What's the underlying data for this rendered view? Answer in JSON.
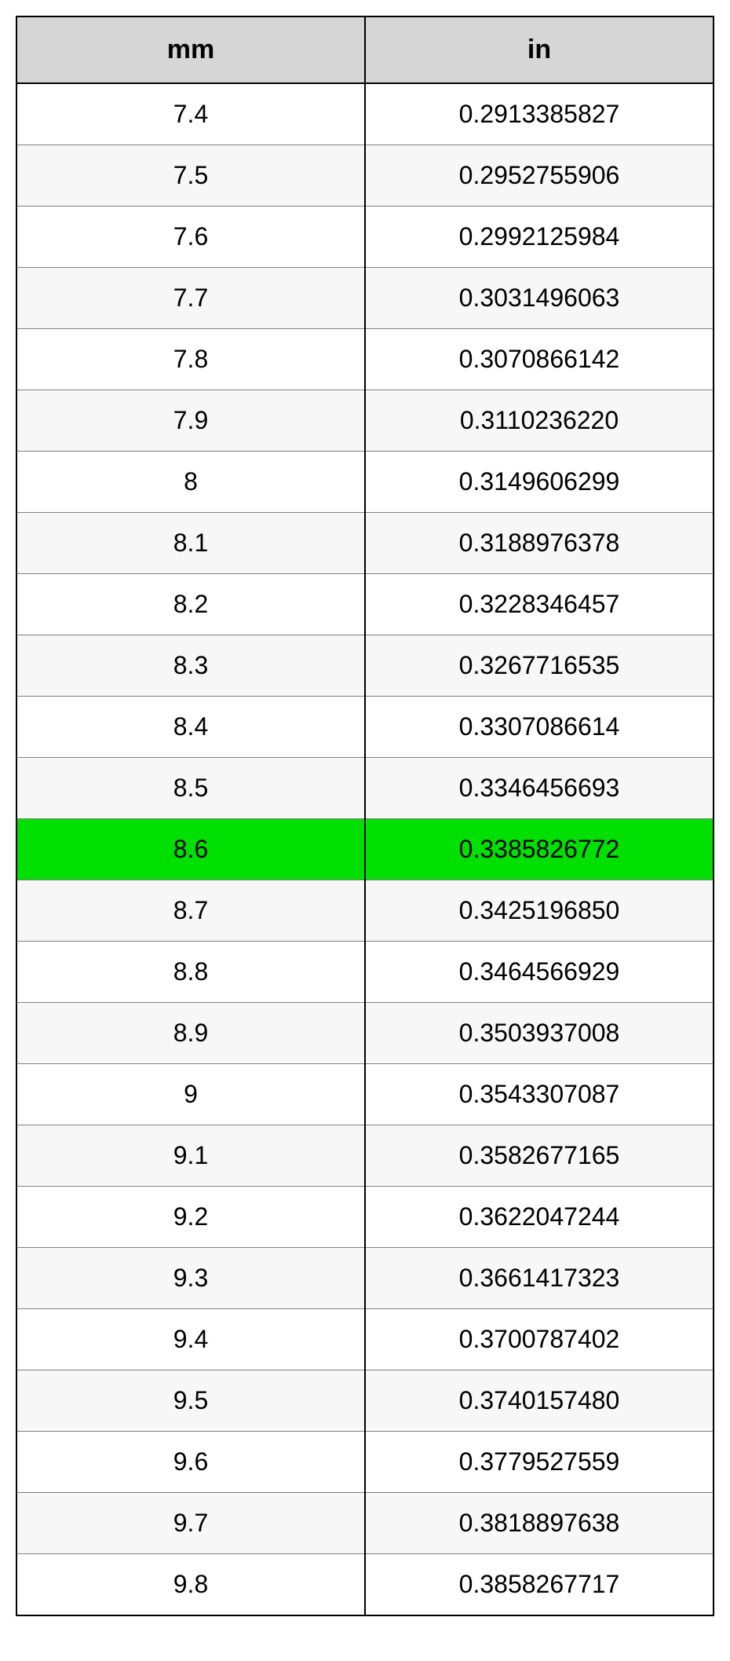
{
  "table": {
    "type": "table",
    "columns": [
      "mm",
      "in"
    ],
    "header_bg": "#d6d6d6",
    "row_even_bg": "#ffffff",
    "row_odd_bg": "#f7f7f7",
    "highlight_bg": "#00e000",
    "highlight_index": 12,
    "border_color": "#000000",
    "grid_color": "#808080",
    "font_family": "Arial",
    "header_fontsize": 34,
    "cell_fontsize": 32,
    "rows": [
      [
        "7.4",
        "0.2913385827"
      ],
      [
        "7.5",
        "0.2952755906"
      ],
      [
        "7.6",
        "0.2992125984"
      ],
      [
        "7.7",
        "0.3031496063"
      ],
      [
        "7.8",
        "0.3070866142"
      ],
      [
        "7.9",
        "0.3110236220"
      ],
      [
        "8",
        "0.3149606299"
      ],
      [
        "8.1",
        "0.3188976378"
      ],
      [
        "8.2",
        "0.3228346457"
      ],
      [
        "8.3",
        "0.3267716535"
      ],
      [
        "8.4",
        "0.3307086614"
      ],
      [
        "8.5",
        "0.3346456693"
      ],
      [
        "8.6",
        "0.3385826772"
      ],
      [
        "8.7",
        "0.3425196850"
      ],
      [
        "8.8",
        "0.3464566929"
      ],
      [
        "8.9",
        "0.3503937008"
      ],
      [
        "9",
        "0.3543307087"
      ],
      [
        "9.1",
        "0.3582677165"
      ],
      [
        "9.2",
        "0.3622047244"
      ],
      [
        "9.3",
        "0.3661417323"
      ],
      [
        "9.4",
        "0.3700787402"
      ],
      [
        "9.5",
        "0.3740157480"
      ],
      [
        "9.6",
        "0.3779527559"
      ],
      [
        "9.7",
        "0.3818897638"
      ],
      [
        "9.8",
        "0.3858267717"
      ]
    ]
  }
}
